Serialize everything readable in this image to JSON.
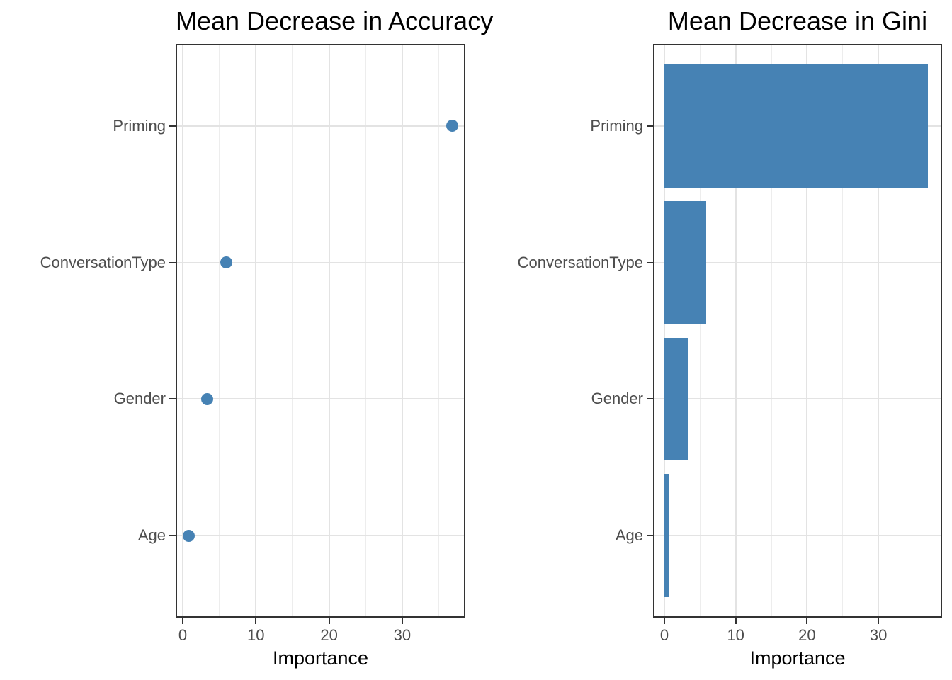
{
  "figure": {
    "background": "#ffffff",
    "description": "Random forest variable importance plots"
  },
  "style": {
    "accent": "#4682B4",
    "title_color": "#000000",
    "axis_text_color": "#4d4d4d",
    "axis_title_color": "#000000",
    "panel_border": "#333333",
    "grid_major": "#e3e3e3",
    "grid_minor": "#ededed"
  },
  "chart_data": [
    {
      "type": "scatter",
      "orientation": "horizontal",
      "title": "Mean Decrease in Accuracy",
      "xlabel": "Importance",
      "ylabel": "",
      "categories": [
        "Priming",
        "ConversationType",
        "Gender",
        "Age"
      ],
      "values": [
        36.8,
        6.0,
        3.3,
        0.8
      ],
      "x_ticks": [
        0,
        10,
        20,
        30
      ],
      "x_minor_ticks": [
        5,
        15,
        25,
        35
      ],
      "xlim": [
        -0.97,
        38.63
      ],
      "grid": true,
      "legend": "none",
      "point_color": "#4682B4"
    },
    {
      "type": "bar",
      "orientation": "horizontal",
      "title": "Mean Decrease in Gini",
      "xlabel": "Importance",
      "ylabel": "",
      "categories": [
        "Priming",
        "ConversationType",
        "Gender",
        "Age"
      ],
      "values": [
        36.9,
        5.9,
        3.3,
        0.7
      ],
      "x_ticks": [
        0,
        10,
        20,
        30
      ],
      "x_minor_ticks": [
        5,
        15,
        25,
        35
      ],
      "xlim": [
        -1.59,
        38.93
      ],
      "grid": true,
      "legend": "none",
      "bar_color": "#4682B4"
    }
  ]
}
